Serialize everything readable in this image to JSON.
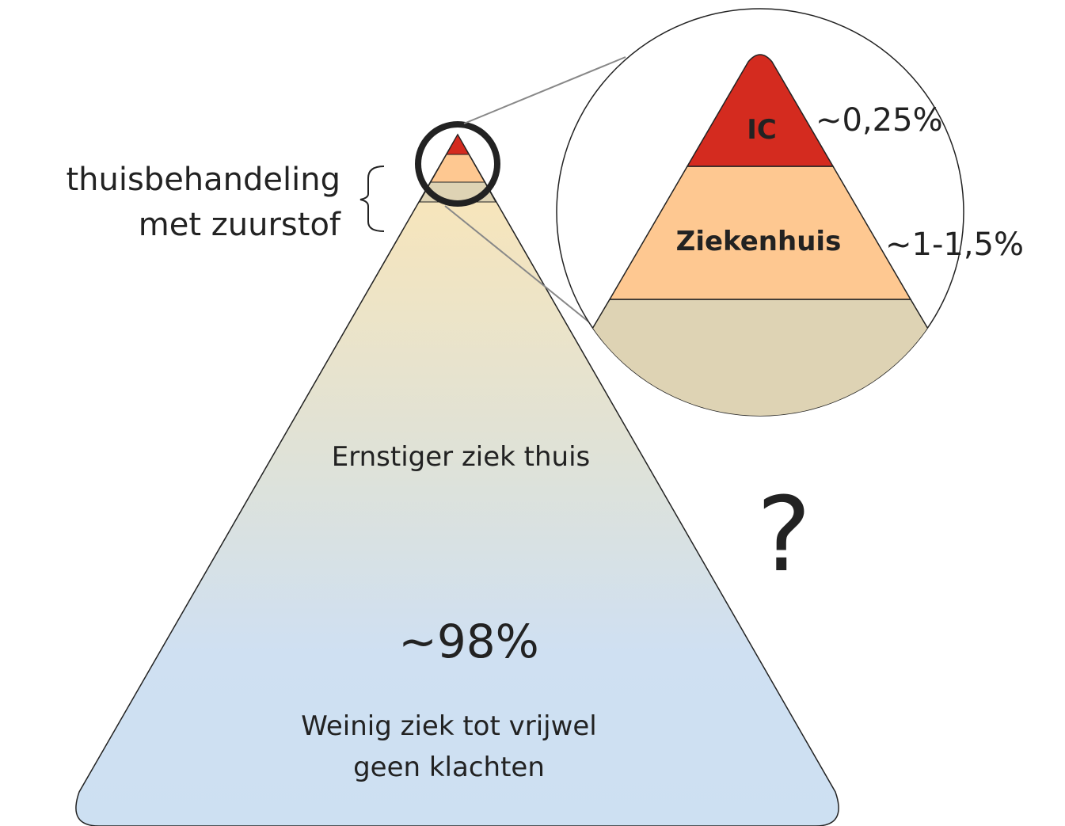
{
  "left_label": {
    "line1": "thuisbehandeling",
    "line2": "met zuurstof"
  },
  "zoom": {
    "top_label": "IC",
    "top_percent": "~0,25%",
    "middle_label": "Ziekenhuis",
    "middle_percent": "~1-1,5%"
  },
  "pyramid": {
    "upper_label": "Ernstiger ziek thuis",
    "question": "?",
    "percent": "~98%",
    "base_line1": "Weinig ziek tot vrijwel",
    "base_line2": "geen klachten"
  }
}
